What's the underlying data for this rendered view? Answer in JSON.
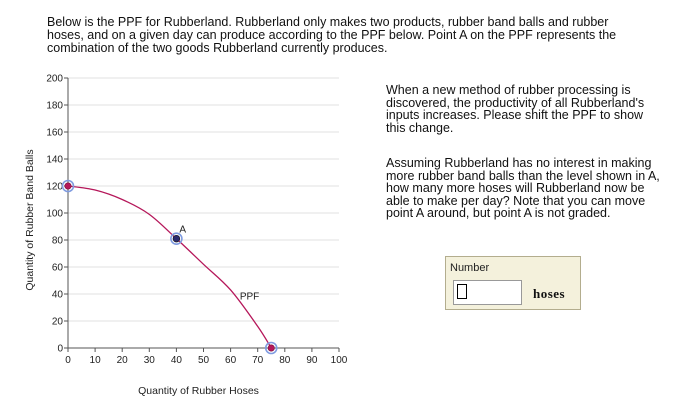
{
  "intro_text": "Below is the PPF for Rubberland. Rubberland only makes two products, rubber band balls and rubber hoses, and on a given day can produce according to the PPF below. Point A on the PPF represents the combination of the two goods Rubberland currently produces.",
  "question_1": "When a new method of rubber processing is discovered, the productivity of all Rubberland's inputs increases. Please shift the PPF to show this change.",
  "question_2": "Assuming Rubberland has no interest in making more rubber band balls than the level shown in A, how many more hoses will Rubberland now be able to make per day? Note that you can move point A around, but point A is not graded.",
  "answer": {
    "label": "Number",
    "value": "",
    "placeholder": "",
    "unit": "hoses"
  },
  "chart_data": {
    "type": "line",
    "xlabel": "Quantity of Rubber Hoses",
    "ylabel": "Quantity of Rubber Band Balls",
    "xlim": [
      0,
      100
    ],
    "ylim": [
      0,
      200
    ],
    "x_ticks": [
      0,
      10,
      20,
      30,
      40,
      50,
      60,
      70,
      80,
      90,
      100
    ],
    "y_ticks": [
      0,
      20,
      40,
      60,
      80,
      100,
      120,
      140,
      160,
      180,
      200
    ],
    "grid": true,
    "curve_label": "PPF",
    "curve_color": "#b5175a",
    "endpoints": [
      {
        "x": 0,
        "y": 120
      },
      {
        "x": 75,
        "y": 0
      }
    ],
    "curve": [
      {
        "x": 0,
        "y": 120
      },
      {
        "x": 10,
        "y": 117
      },
      {
        "x": 20,
        "y": 110
      },
      {
        "x": 30,
        "y": 99
      },
      {
        "x": 40,
        "y": 81
      },
      {
        "x": 50,
        "y": 62
      },
      {
        "x": 60,
        "y": 43
      },
      {
        "x": 70,
        "y": 16
      },
      {
        "x": 75,
        "y": 0
      }
    ],
    "point_A": {
      "label": "A",
      "x": 40,
      "y": 81
    }
  }
}
